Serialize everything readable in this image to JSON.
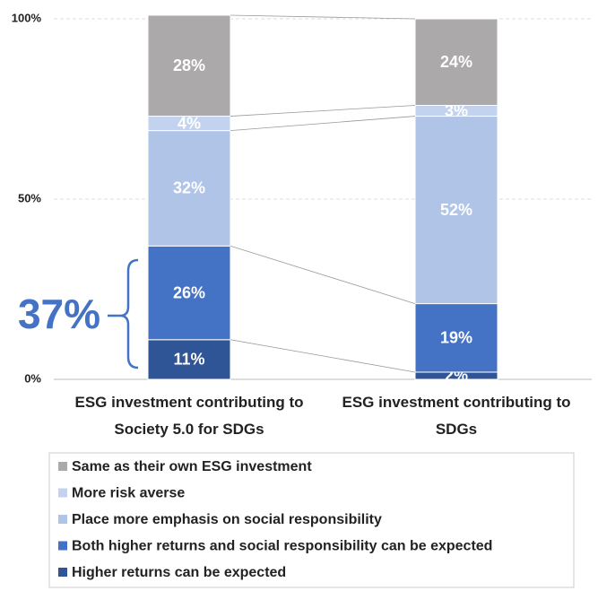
{
  "chart_data": {
    "type": "stacked_bar",
    "categories": [
      "ESG investment contributing to Society 5.0 for SDGs",
      "ESG investment contributing to SDGs"
    ],
    "series": [
      {
        "name": "Higher returns can be expected",
        "color": "#2f5597",
        "values": [
          11,
          2
        ],
        "value_labels": [
          "11%",
          "2%"
        ]
      },
      {
        "name": "Both higher returns and social responsibility can be expected",
        "color": "#4472c4",
        "values": [
          26,
          19
        ],
        "value_labels": [
          "26%",
          "19%"
        ]
      },
      {
        "name": "Place more emphasis on social responsibility",
        "color": "#b0c4e7",
        "values": [
          32,
          52
        ],
        "value_labels": [
          "32%",
          "52%"
        ]
      },
      {
        "name": "More risk averse",
        "color": "#c3d2ee",
        "values": [
          4,
          3
        ],
        "value_labels": [
          "4%",
          "3%"
        ]
      },
      {
        "name": "Same as their own ESG investment",
        "color": "#aba9a9",
        "values": [
          28,
          24
        ],
        "value_labels": [
          "28%",
          "24%"
        ]
      }
    ],
    "ylim": [
      0,
      100
    ],
    "yticks": [
      {
        "value": 0,
        "label": "0%"
      },
      {
        "value": 50,
        "label": "50%"
      },
      {
        "value": 100,
        "label": "100%"
      }
    ],
    "grid": true,
    "legend": "bottom",
    "annotation": "37%"
  }
}
